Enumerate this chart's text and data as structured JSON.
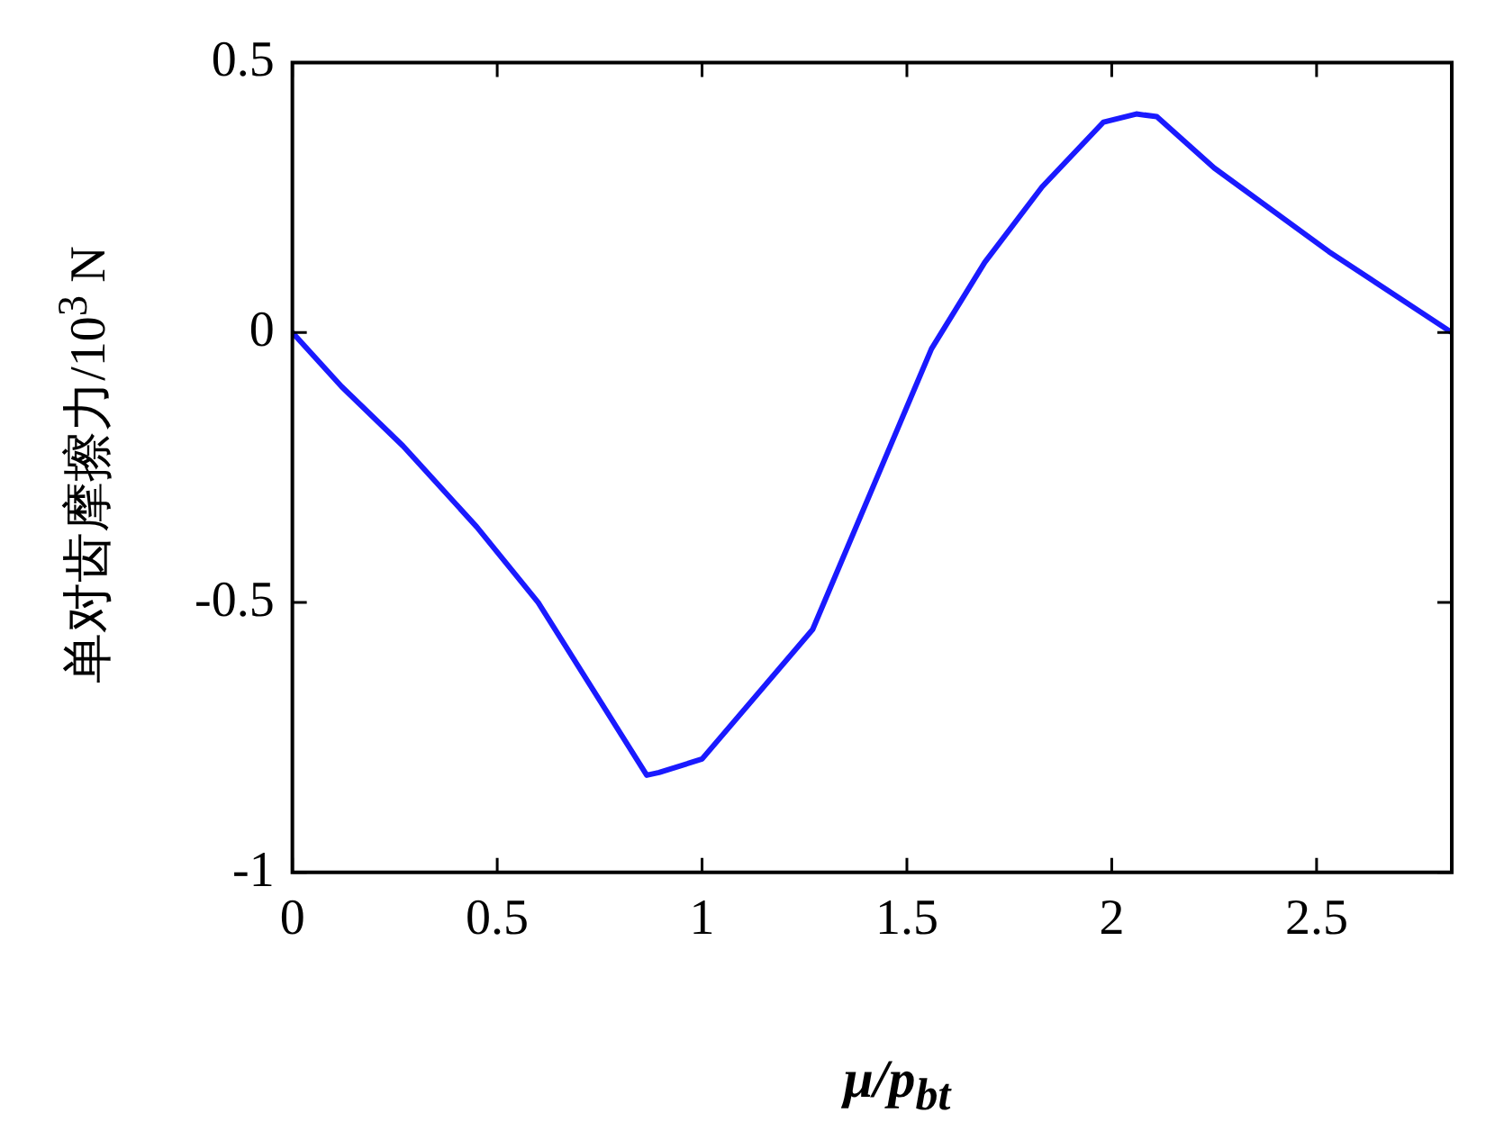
{
  "chart_data": {
    "type": "line",
    "xlabel": "μ/p$_{bt}$",
    "ylabel": "单对齿摩擦力/10$^{3}$ N",
    "xlim": [
      0,
      2.83
    ],
    "xticks": [
      0,
      0.5,
      1,
      1.5,
      2,
      2.5
    ],
    "ylim": [
      -1,
      0.5
    ],
    "yticks": [
      -1,
      -0.5,
      0,
      0.5
    ],
    "grid": false,
    "legend": false,
    "marker": "none",
    "line_style": "solid",
    "series": [
      {
        "color": "#1a1aff",
        "x": [
          0,
          0.12,
          0.27,
          0.45,
          0.6,
          0.865,
          0.895,
          1.0,
          1.27,
          1.56,
          1.69,
          1.83,
          1.98,
          2.06,
          2.11,
          2.25,
          2.53,
          2.83
        ],
        "values": [
          0,
          -0.1,
          -0.21,
          -0.36,
          -0.5,
          -0.82,
          -0.815,
          -0.79,
          -0.55,
          -0.03,
          0.13,
          0.27,
          0.39,
          0.405,
          0.4,
          0.305,
          0.15,
          0
        ]
      }
    ]
  }
}
